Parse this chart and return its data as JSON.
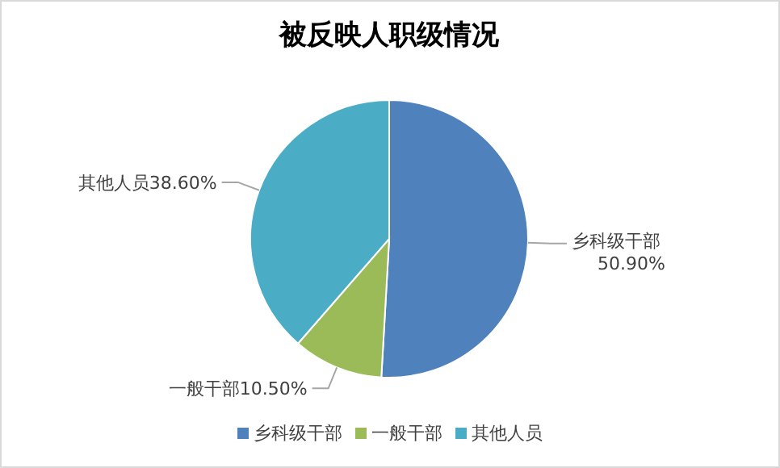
{
  "chart_data": {
    "type": "pie",
    "title": "被反映人职级情况",
    "categories": [
      "乡科级干部",
      "一般干部",
      "其他人员"
    ],
    "values": [
      50.9,
      10.5,
      38.6
    ],
    "value_labels": [
      "50.90%",
      "10.50%",
      "38.60%"
    ],
    "colors": [
      "#4f81bd",
      "#9bbb59",
      "#4bacc6"
    ],
    "legend": "bottom"
  }
}
